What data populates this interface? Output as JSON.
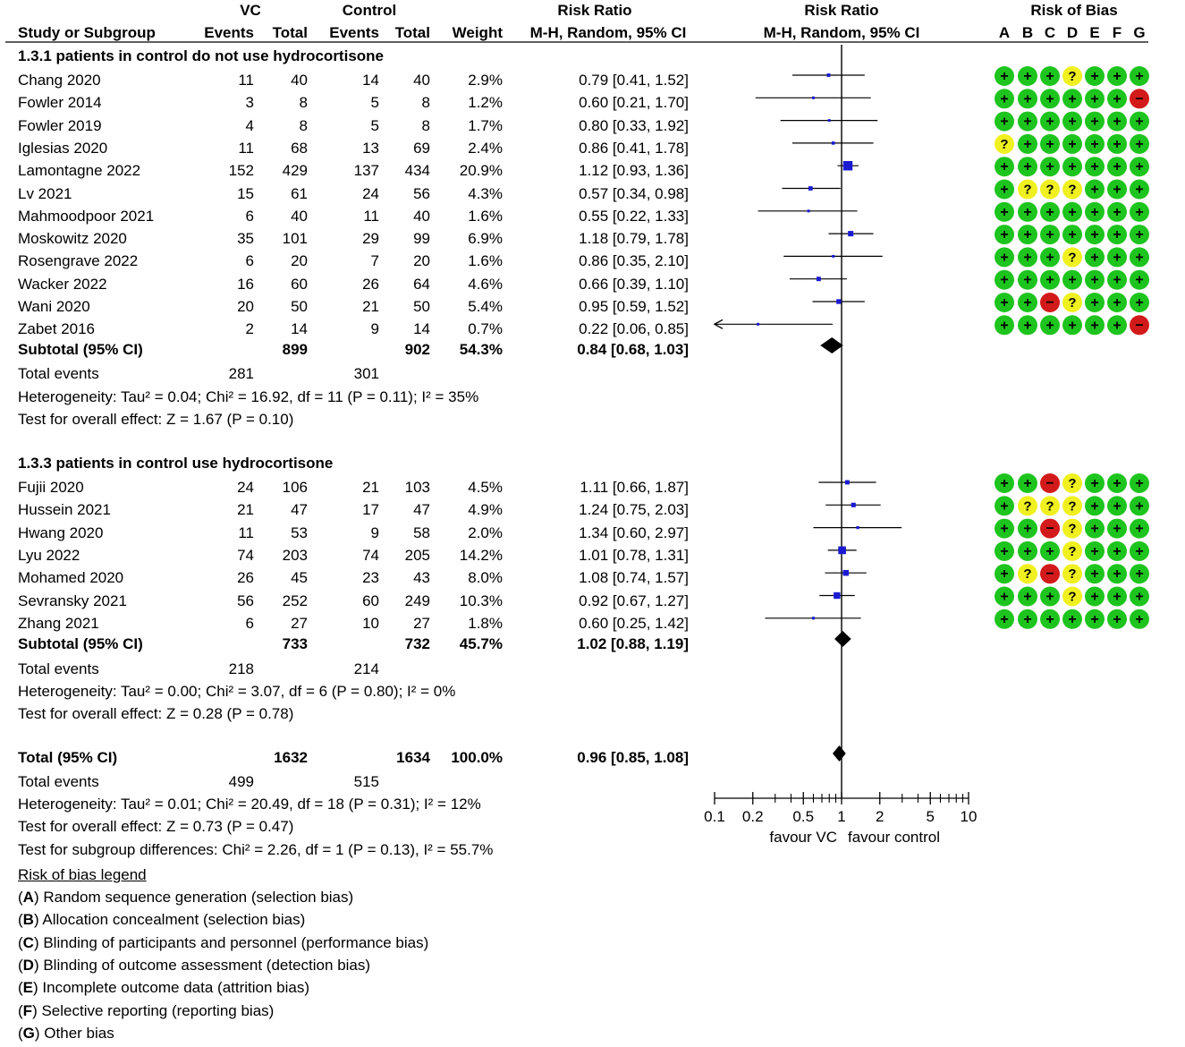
{
  "headers": {
    "group_vc": "VC",
    "group_control": "Control",
    "risk_ratio_text": "Risk Ratio",
    "risk_ratio_plot": "Risk Ratio",
    "risk_of_bias": "Risk of Bias",
    "study_or_subgroup": "Study or Subgroup",
    "events": "Events",
    "total": "Total",
    "weight": "Weight",
    "method_text": "M-H, Random, 95% CI",
    "method_plot": "M-H, Random, 95% CI",
    "bias_columns": [
      "A",
      "B",
      "C",
      "D",
      "E",
      "F",
      "G"
    ]
  },
  "subgroups": [
    {
      "title": "1.3.1 patients in control do not use hydrocortisone",
      "studies": [
        {
          "name": "Chang 2020",
          "vc_events": "11",
          "vc_total": "40",
          "ctrl_events": "14",
          "ctrl_total": "40",
          "weight": "2.9%",
          "ci_text": "0.79 [0.41, 1.52]",
          "rr": 0.79,
          "lo": 0.41,
          "hi": 1.52,
          "bias": [
            "+",
            "+",
            "+",
            "?",
            "+",
            "+",
            "+"
          ]
        },
        {
          "name": "Fowler 2014",
          "vc_events": "3",
          "vc_total": "8",
          "ctrl_events": "5",
          "ctrl_total": "8",
          "weight": "1.2%",
          "ci_text": "0.60 [0.21, 1.70]",
          "rr": 0.6,
          "lo": 0.21,
          "hi": 1.7,
          "bias": [
            "+",
            "+",
            "+",
            "+",
            "+",
            "+",
            "-"
          ]
        },
        {
          "name": "Fowler 2019",
          "vc_events": "4",
          "vc_total": "8",
          "ctrl_events": "5",
          "ctrl_total": "8",
          "weight": "1.7%",
          "ci_text": "0.80 [0.33, 1.92]",
          "rr": 0.8,
          "lo": 0.33,
          "hi": 1.92,
          "bias": [
            "+",
            "+",
            "+",
            "+",
            "+",
            "+",
            "+"
          ]
        },
        {
          "name": "Iglesias 2020",
          "vc_events": "11",
          "vc_total": "68",
          "ctrl_events": "13",
          "ctrl_total": "69",
          "weight": "2.4%",
          "ci_text": "0.86 [0.41, 1.78]",
          "rr": 0.86,
          "lo": 0.41,
          "hi": 1.78,
          "bias": [
            "?",
            "+",
            "+",
            "+",
            "+",
            "+",
            "+"
          ]
        },
        {
          "name": "Lamontagne 2022",
          "vc_events": "152",
          "vc_total": "429",
          "ctrl_events": "137",
          "ctrl_total": "434",
          "weight": "20.9%",
          "ci_text": "1.12 [0.93, 1.36]",
          "rr": 1.12,
          "lo": 0.93,
          "hi": 1.36,
          "bias": [
            "+",
            "+",
            "+",
            "+",
            "+",
            "+",
            "+"
          ]
        },
        {
          "name": "Lv 2021",
          "vc_events": "15",
          "vc_total": "61",
          "ctrl_events": "24",
          "ctrl_total": "56",
          "weight": "4.3%",
          "ci_text": "0.57 [0.34, 0.98]",
          "rr": 0.57,
          "lo": 0.34,
          "hi": 0.98,
          "bias": [
            "+",
            "?",
            "?",
            "?",
            "+",
            "+",
            "+"
          ]
        },
        {
          "name": "Mahmoodpoor 2021",
          "vc_events": "6",
          "vc_total": "40",
          "ctrl_events": "11",
          "ctrl_total": "40",
          "weight": "1.6%",
          "ci_text": "0.55 [0.22, 1.33]",
          "rr": 0.55,
          "lo": 0.22,
          "hi": 1.33,
          "bias": [
            "+",
            "+",
            "+",
            "+",
            "+",
            "+",
            "+"
          ]
        },
        {
          "name": "Moskowitz 2020",
          "vc_events": "35",
          "vc_total": "101",
          "ctrl_events": "29",
          "ctrl_total": "99",
          "weight": "6.9%",
          "ci_text": "1.18 [0.79, 1.78]",
          "rr": 1.18,
          "lo": 0.79,
          "hi": 1.78,
          "bias": [
            "+",
            "+",
            "+",
            "+",
            "+",
            "+",
            "+"
          ]
        },
        {
          "name": "Rosengrave 2022",
          "vc_events": "6",
          "vc_total": "20",
          "ctrl_events": "7",
          "ctrl_total": "20",
          "weight": "1.6%",
          "ci_text": "0.86 [0.35, 2.10]",
          "rr": 0.86,
          "lo": 0.35,
          "hi": 2.1,
          "bias": [
            "+",
            "+",
            "+",
            "?",
            "+",
            "+",
            "+"
          ]
        },
        {
          "name": "Wacker 2022",
          "vc_events": "16",
          "vc_total": "60",
          "ctrl_events": "26",
          "ctrl_total": "64",
          "weight": "4.6%",
          "ci_text": "0.66 [0.39, 1.10]",
          "rr": 0.66,
          "lo": 0.39,
          "hi": 1.1,
          "bias": [
            "+",
            "+",
            "+",
            "+",
            "+",
            "+",
            "+"
          ]
        },
        {
          "name": "Wani 2020",
          "vc_events": "20",
          "vc_total": "50",
          "ctrl_events": "21",
          "ctrl_total": "50",
          "weight": "5.4%",
          "ci_text": "0.95 [0.59, 1.52]",
          "rr": 0.95,
          "lo": 0.59,
          "hi": 1.52,
          "bias": [
            "+",
            "+",
            "-",
            "?",
            "+",
            "+",
            "+"
          ]
        },
        {
          "name": "Zabet 2016",
          "vc_events": "2",
          "vc_total": "14",
          "ctrl_events": "9",
          "ctrl_total": "14",
          "weight": "0.7%",
          "ci_text": "0.22 [0.06, 0.85]",
          "rr": 0.22,
          "lo": 0.06,
          "hi": 0.85,
          "bias": [
            "+",
            "+",
            "+",
            "+",
            "+",
            "+",
            "-"
          ]
        }
      ],
      "subtotal": {
        "label": "Subtotal (95% CI)",
        "vc_total": "899",
        "ctrl_total": "902",
        "weight": "54.3%",
        "ci_text": "0.84 [0.68, 1.03]",
        "rr": 0.84,
        "lo": 0.68,
        "hi": 1.03
      },
      "total_events": {
        "label": "Total events",
        "vc": "281",
        "ctrl": "301"
      },
      "heterogeneity": "Heterogeneity: Tau² = 0.04; Chi² = 16.92, df = 11 (P = 0.11); I² = 35%",
      "overall_effect": "Test for overall effect: Z = 1.67 (P = 0.10)"
    },
    {
      "title": "1.3.3 patients in control use hydrocortisone",
      "studies": [
        {
          "name": "Fujii 2020",
          "vc_events": "24",
          "vc_total": "106",
          "ctrl_events": "21",
          "ctrl_total": "103",
          "weight": "4.5%",
          "ci_text": "1.11 [0.66, 1.87]",
          "rr": 1.11,
          "lo": 0.66,
          "hi": 1.87,
          "bias": [
            "+",
            "+",
            "-",
            "?",
            "+",
            "+",
            "+"
          ]
        },
        {
          "name": "Hussein 2021",
          "vc_events": "21",
          "vc_total": "47",
          "ctrl_events": "17",
          "ctrl_total": "47",
          "weight": "4.9%",
          "ci_text": "1.24 [0.75, 2.03]",
          "rr": 1.24,
          "lo": 0.75,
          "hi": 2.03,
          "bias": [
            "+",
            "?",
            "?",
            "?",
            "+",
            "+",
            "+"
          ]
        },
        {
          "name": "Hwang 2020",
          "vc_events": "11",
          "vc_total": "53",
          "ctrl_events": "9",
          "ctrl_total": "58",
          "weight": "2.0%",
          "ci_text": "1.34 [0.60, 2.97]",
          "rr": 1.34,
          "lo": 0.6,
          "hi": 2.97,
          "bias": [
            "+",
            "+",
            "-",
            "?",
            "+",
            "+",
            "+"
          ]
        },
        {
          "name": "Lyu 2022",
          "vc_events": "74",
          "vc_total": "203",
          "ctrl_events": "74",
          "ctrl_total": "205",
          "weight": "14.2%",
          "ci_text": "1.01 [0.78, 1.31]",
          "rr": 1.01,
          "lo": 0.78,
          "hi": 1.31,
          "bias": [
            "+",
            "+",
            "+",
            "?",
            "+",
            "+",
            "+"
          ]
        },
        {
          "name": "Mohamed 2020",
          "vc_events": "26",
          "vc_total": "45",
          "ctrl_events": "23",
          "ctrl_total": "43",
          "weight": "8.0%",
          "ci_text": "1.08 [0.74, 1.57]",
          "rr": 1.08,
          "lo": 0.74,
          "hi": 1.57,
          "bias": [
            "+",
            "?",
            "-",
            "?",
            "+",
            "+",
            "+"
          ]
        },
        {
          "name": "Sevransky 2021",
          "vc_events": "56",
          "vc_total": "252",
          "ctrl_events": "60",
          "ctrl_total": "249",
          "weight": "10.3%",
          "ci_text": "0.92 [0.67, 1.27]",
          "rr": 0.92,
          "lo": 0.67,
          "hi": 1.27,
          "bias": [
            "+",
            "+",
            "+",
            "?",
            "+",
            "+",
            "+"
          ]
        },
        {
          "name": "Zhang 2021",
          "vc_events": "6",
          "vc_total": "27",
          "ctrl_events": "10",
          "ctrl_total": "27",
          "weight": "1.8%",
          "ci_text": "0.60 [0.25, 1.42]",
          "rr": 0.6,
          "lo": 0.25,
          "hi": 1.42,
          "bias": [
            "+",
            "+",
            "+",
            "+",
            "+",
            "+",
            "+"
          ]
        }
      ],
      "subtotal": {
        "label": "Subtotal (95% CI)",
        "vc_total": "733",
        "ctrl_total": "732",
        "weight": "45.7%",
        "ci_text": "1.02 [0.88, 1.19]",
        "rr": 1.02,
        "lo": 0.88,
        "hi": 1.19
      },
      "total_events": {
        "label": "Total events",
        "vc": "218",
        "ctrl": "214"
      },
      "heterogeneity": "Heterogeneity: Tau² = 0.00; Chi² = 3.07, df = 6 (P = 0.80); I² = 0%",
      "overall_effect": "Test for overall effect: Z = 0.28 (P = 0.78)"
    }
  ],
  "overall": {
    "label": "Total (95% CI)",
    "vc_total": "1632",
    "ctrl_total": "1634",
    "weight": "100.0%",
    "ci_text": "0.96 [0.85, 1.08]",
    "rr": 0.96,
    "lo": 0.85,
    "hi": 1.08,
    "total_events": {
      "label": "Total events",
      "vc": "499",
      "ctrl": "515"
    },
    "heterogeneity": "Heterogeneity: Tau² = 0.01; Chi² = 20.49, df = 18 (P = 0.31); I² = 12%",
    "overall_effect": "Test for overall effect: Z = 0.73 (P = 0.47)",
    "subgroup_differences": "Test for subgroup differences: Chi² = 2.26, df = 1 (P = 0.13), I² = 55.7%"
  },
  "chart_data": {
    "type": "forest",
    "scale": "log",
    "xlim": [
      0.1,
      10
    ],
    "ticks": [
      0.1,
      0.2,
      0.5,
      1,
      2,
      5,
      10
    ],
    "tick_labels": [
      "0.1",
      "0.2",
      "0.5",
      "1",
      "2",
      "5",
      "10"
    ],
    "xlabel_left": "favour VC",
    "xlabel_right": "favour control",
    "reference_line": 1
  },
  "legend": {
    "title": "Risk of bias legend",
    "items": [
      {
        "letter": "A",
        "text": " Random sequence generation (selection bias)"
      },
      {
        "letter": "B",
        "text": " Allocation concealment (selection bias)"
      },
      {
        "letter": "C",
        "text": " Blinding of participants and personnel (performance bias)"
      },
      {
        "letter": "D",
        "text": " Blinding of outcome assessment (detection bias)"
      },
      {
        "letter": "E",
        "text": " Incomplete outcome data (attrition bias)"
      },
      {
        "letter": "F",
        "text": " Selective reporting (reporting bias)"
      },
      {
        "letter": "G",
        "text": " Other bias"
      }
    ]
  },
  "colors": {
    "low_risk": "#1ec41e",
    "unclear_risk": "#f0f020",
    "high_risk": "#d21a1a",
    "marker": "#1a1ad2",
    "diamond": "#000000"
  }
}
